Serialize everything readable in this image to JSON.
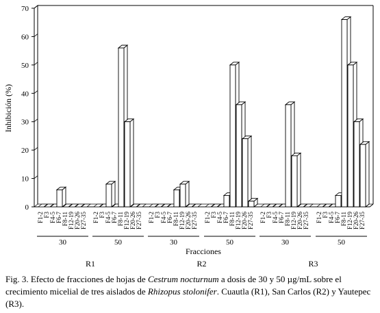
{
  "chart_data": {
    "type": "bar",
    "style": "3d-bars",
    "ylabel": "Inhibición (%)",
    "xlabel": "Fracciones",
    "ylim": [
      0,
      70
    ],
    "yticks": [
      0,
      10,
      20,
      30,
      40,
      50,
      60,
      70
    ],
    "grid": false,
    "groups": [
      {
        "strain": "R1",
        "dose": "30",
        "categories": [
          "F1-2",
          "F3",
          "F4-5",
          "F6-7",
          "F8-11",
          "F12-19",
          "F20-26",
          "F27-35"
        ],
        "values": [
          0,
          0,
          0,
          6,
          0,
          0,
          0,
          0
        ]
      },
      {
        "strain": "R1",
        "dose": "50",
        "categories": [
          "F1-2",
          "F3",
          "F4-5",
          "F6-7",
          "F8-11",
          "F12-19",
          "F20-26",
          "F27-35"
        ],
        "values": [
          0,
          0,
          8,
          0,
          56,
          30,
          0,
          0
        ]
      },
      {
        "strain": "R2",
        "dose": "30",
        "categories": [
          "F1-2",
          "F3",
          "F4-5",
          "F6-7",
          "F8-11",
          "F12-19",
          "F20-26",
          "F27-35"
        ],
        "values": [
          0,
          0,
          0,
          0,
          6,
          8,
          0,
          0
        ]
      },
      {
        "strain": "R2",
        "dose": "50",
        "categories": [
          "F1-2",
          "F3",
          "F4-5",
          "F6-7",
          "F8-11",
          "F12-19",
          "F20-26",
          "F27-35"
        ],
        "values": [
          0,
          0,
          0,
          4,
          50,
          36,
          24,
          2
        ]
      },
      {
        "strain": "R3",
        "dose": "30",
        "categories": [
          "F1-2",
          "F3",
          "F4-5",
          "F6-7",
          "F8-11",
          "F12-19",
          "F20-26",
          "F27-35"
        ],
        "values": [
          0,
          0,
          0,
          0,
          36,
          18,
          0,
          0
        ]
      },
      {
        "strain": "R3",
        "dose": "50",
        "categories": [
          "F1-2",
          "F3",
          "F4-5",
          "F6-7",
          "F8-11",
          "F12-19",
          "F20-26",
          "F27-35"
        ],
        "values": [
          0,
          0,
          0,
          4,
          66,
          50,
          30,
          22
        ]
      }
    ],
    "strains": [
      "R1",
      "R2",
      "R3"
    ]
  },
  "caption": {
    "prefix": "Fig. 3. Efecto de fracciones de hojas de ",
    "species1": "Cestrum nocturnum",
    "middle": " a dosis de 30 y 50 µg/mL sobre el crecimiento micelial de tres aislados de ",
    "species2": "Rhizopus stolonifer",
    "suffix": ". Cuautla (R1), San Carlos (R2) y Yautepec (R3)."
  }
}
